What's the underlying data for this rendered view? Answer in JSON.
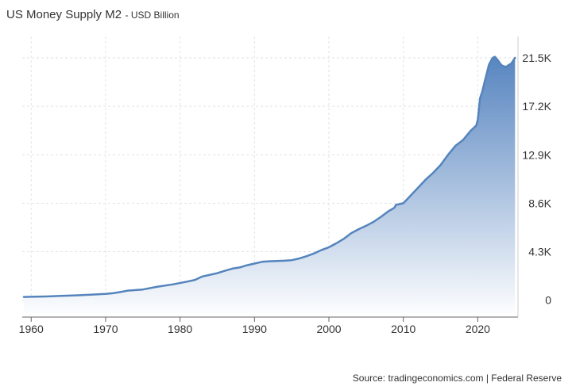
{
  "header": {
    "title": "US Money Supply M2",
    "unit_label": "- USD Billion"
  },
  "footer": {
    "source": "Source: tradingeconomics.com | Federal Reserve"
  },
  "colors": {
    "line": "#5584bd",
    "fill_top": "#4f7fbd",
    "fill_bottom": "#ffffff",
    "grid": "#e2e2e2",
    "axis": "#666666",
    "text": "#333333"
  },
  "chart_data": {
    "type": "area",
    "title": "US Money Supply M2",
    "ylabel": "",
    "xlabel": "",
    "unit": "USD Billion",
    "x_ticks": [
      1960,
      1970,
      1980,
      1990,
      2000,
      2010,
      2020
    ],
    "y_ticks": [
      0,
      4300,
      8600,
      12900,
      17200,
      21500
    ],
    "y_tick_labels": [
      "0",
      "4.3K",
      "8.6K",
      "12.9K",
      "17.2K",
      "21.5K"
    ],
    "xlim": [
      1958.8,
      2025.4
    ],
    "ylim": [
      -1500,
      23400
    ],
    "grid": true,
    "y_axis_side": "right",
    "series": [
      {
        "name": "",
        "x": [
          1959,
          1960,
          1962,
          1964,
          1966,
          1968,
          1970,
          1971,
          1972,
          1973,
          1975,
          1977,
          1979,
          1981,
          1982,
          1983,
          1985,
          1986,
          1987,
          1988,
          1989,
          1990,
          1991,
          1992,
          1993,
          1994,
          1995,
          1996,
          1997,
          1998,
          1999,
          2000,
          2001,
          2002,
          2003,
          2004,
          2005,
          2006,
          2007,
          2008,
          2008.8,
          2009,
          2010,
          2011,
          2012,
          2013,
          2014,
          2015,
          2016,
          2017,
          2018,
          2019,
          2019.8,
          2020,
          2020.3,
          2020.6,
          2021,
          2021.5,
          2022,
          2022.3,
          2022.7,
          2023,
          2023.3,
          2023.8,
          2024,
          2024.5,
          2025
        ],
        "y": [
          290,
          300,
          330,
          380,
          430,
          490,
          560,
          620,
          720,
          850,
          950,
          1200,
          1400,
          1650,
          1800,
          2100,
          2400,
          2600,
          2800,
          2900,
          3100,
          3250,
          3400,
          3450,
          3480,
          3500,
          3550,
          3700,
          3900,
          4150,
          4450,
          4700,
          5050,
          5450,
          5950,
          6300,
          6600,
          6950,
          7400,
          7900,
          8200,
          8450,
          8600,
          9300,
          10000,
          10700,
          11300,
          12000,
          12900,
          13700,
          14200,
          15000,
          15500,
          16000,
          17900,
          18500,
          19600,
          20900,
          21500,
          21600,
          21300,
          21000,
          20800,
          20700,
          20800,
          21000,
          21500
        ]
      }
    ]
  }
}
